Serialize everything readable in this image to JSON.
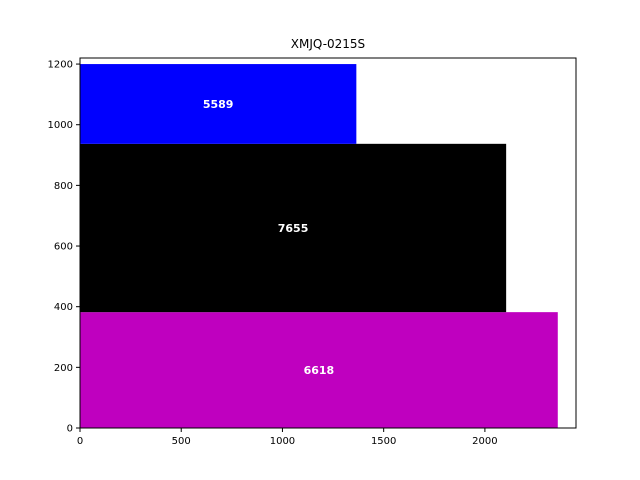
{
  "chart_data": {
    "type": "bar",
    "orientation": "horizontal-stacked-variable-height",
    "title": "XMJQ-0215S",
    "xlabel": "",
    "ylabel": "",
    "xlim": [
      0,
      2450
    ],
    "ylim": [
      0,
      1220
    ],
    "xticks": [
      0,
      500,
      1000,
      1500,
      2000
    ],
    "yticks": [
      0,
      200,
      400,
      600,
      800,
      1000,
      1200
    ],
    "grid": false,
    "bars": [
      {
        "label": "6618",
        "y0": 0,
        "y1": 382,
        "x_length": 2360,
        "color": "#bf00bf"
      },
      {
        "label": "7655",
        "y0": 382,
        "y1": 937,
        "x_length": 2105,
        "color": "#000000"
      },
      {
        "label": "5589",
        "y0": 937,
        "y1": 1200,
        "x_length": 1365,
        "color": "#0000ff"
      }
    ]
  }
}
